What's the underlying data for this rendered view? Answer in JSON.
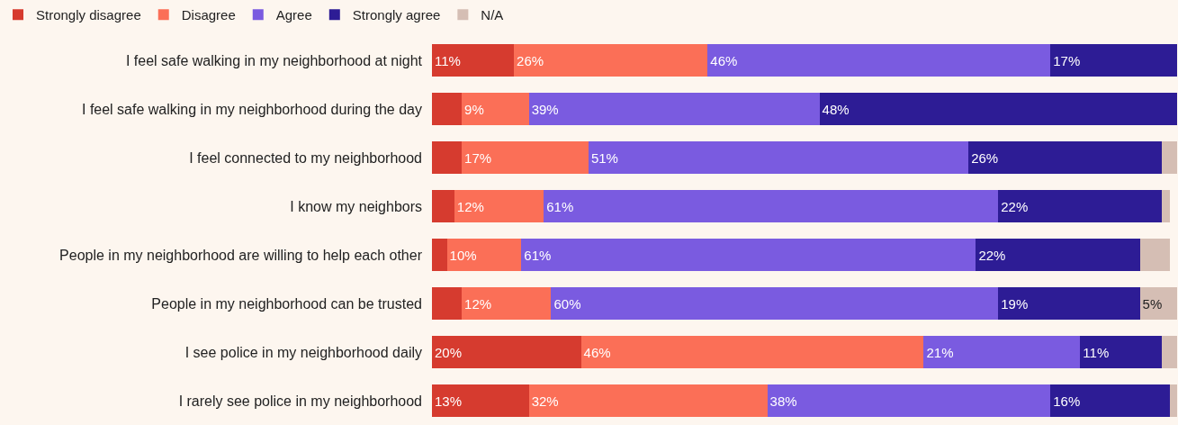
{
  "chart_data": {
    "type": "bar",
    "orientation": "horizontal",
    "stacked": true,
    "categories": [
      "I feel safe walking in my neighborhood at night",
      "I feel safe walking in my neighborhood during the day",
      "I feel connected to my neighborhood",
      "I know my neighbors",
      "People in my neighborhood are willing to help each other",
      "People in my neighborhood can be trusted",
      "I see police in my neighborhood daily",
      "I rarely see police in my neighborhood"
    ],
    "series": [
      {
        "name": "Strongly disagree",
        "color": "#d63b2f",
        "values": [
          11,
          4,
          4,
          3,
          2,
          4,
          20,
          13
        ],
        "value_labels": [
          "11%",
          null,
          null,
          null,
          null,
          null,
          "20%",
          "13%"
        ]
      },
      {
        "name": "Disagree",
        "color": "#fb6f57",
        "values": [
          26,
          9,
          17,
          12,
          10,
          12,
          46,
          32
        ],
        "value_labels": [
          "26%",
          "9%",
          "17%",
          "12%",
          "10%",
          "12%",
          "46%",
          "32%"
        ]
      },
      {
        "name": "Agree",
        "color": "#7a5be0",
        "values": [
          46,
          39,
          51,
          61,
          61,
          60,
          21,
          38
        ],
        "value_labels": [
          "46%",
          "39%",
          "51%",
          "61%",
          "61%",
          "60%",
          "21%",
          "38%"
        ]
      },
      {
        "name": "Strongly agree",
        "color": "#2d1c95",
        "values": [
          17,
          48,
          26,
          22,
          22,
          19,
          11,
          16
        ],
        "value_labels": [
          "17%",
          "48%",
          "26%",
          "22%",
          "22%",
          "19%",
          "11%",
          "16%"
        ]
      },
      {
        "name": "N/A",
        "color": "#d5beb4",
        "values": [
          0,
          0,
          2,
          1,
          4,
          5,
          2,
          1
        ],
        "value_labels": [
          null,
          null,
          null,
          null,
          null,
          "5%",
          null,
          null
        ]
      }
    ],
    "xlim": [
      0,
      100
    ],
    "tick_labels": "y",
    "grid": false,
    "legend": "top left"
  }
}
